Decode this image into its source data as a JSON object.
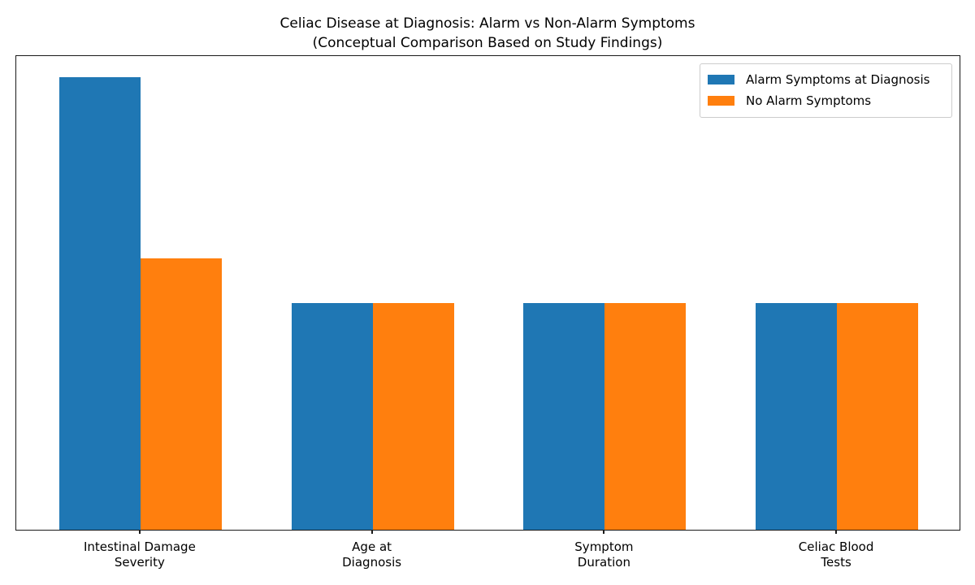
{
  "chart_data": {
    "type": "bar",
    "title": "Celiac Disease at Diagnosis: Alarm vs Non-Alarm Symptoms",
    "subtitle": "(Conceptual Comparison Based on Study Findings)",
    "categories": [
      "Intestinal Damage\nSeverity",
      "Age at\nDiagnosis",
      "Symptom\nDuration",
      "Celiac Blood\nTests"
    ],
    "series": [
      {
        "name": "Alarm Symptoms at Diagnosis",
        "color": "#1f77b4",
        "values": [
          1.0,
          0.5,
          0.5,
          0.5
        ]
      },
      {
        "name": "No Alarm Symptoms",
        "color": "#ff7f0e",
        "values": [
          0.6,
          0.5,
          0.5,
          0.5
        ]
      }
    ],
    "ylim": [
      0,
      1.05
    ],
    "bar_width_fraction": 0.35,
    "grid": false,
    "y_axis_ticks": "none",
    "legend_position": "upper right",
    "frame_color": "#1a1a1a",
    "background_color": "#ffffff"
  }
}
